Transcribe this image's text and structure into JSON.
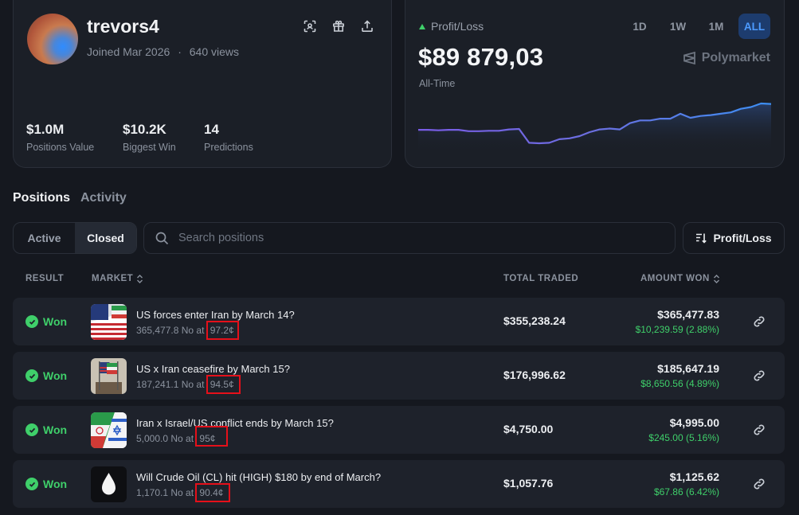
{
  "profile": {
    "username": "trevors4",
    "joined": "Joined Mar 2026",
    "separator": "·",
    "views": "640 views",
    "stats": [
      {
        "value": "$1.0M",
        "label": "Positions Value"
      },
      {
        "value": "$10.2K",
        "label": "Biggest Win"
      },
      {
        "value": "14",
        "label": "Predictions"
      }
    ],
    "icons": [
      "scan-icon",
      "gift-icon",
      "share-icon"
    ]
  },
  "pnl": {
    "label": "Profit/Loss",
    "value": "$89 879,03",
    "period": "All-Time",
    "ranges": [
      "1D",
      "1W",
      "1M",
      "ALL"
    ],
    "active_range": "ALL",
    "brand": "Polymarket",
    "accent_color": "#4d9bff",
    "chart_data": {
      "type": "line",
      "values": [
        0.59,
        0.59,
        0.58,
        0.59,
        0.59,
        0.56,
        0.56,
        0.57,
        0.57,
        0.6,
        0.61,
        0.3,
        0.29,
        0.3,
        0.38,
        0.4,
        0.45,
        0.54,
        0.6,
        0.62,
        0.6,
        0.74,
        0.8,
        0.8,
        0.84,
        0.84,
        0.95,
        0.86,
        0.9,
        0.92,
        0.95,
        0.98,
        1.06,
        1.1,
        1.18,
        1.17
      ]
    }
  },
  "tabs": [
    {
      "label": "Positions",
      "active": true
    },
    {
      "label": "Activity",
      "active": false
    }
  ],
  "filter": {
    "active_label": "Active",
    "closed_label": "Closed",
    "selected": "Closed"
  },
  "search": {
    "placeholder": "Search positions"
  },
  "sort_button": {
    "label": "Profit/Loss"
  },
  "table": {
    "headers": {
      "result": "RESULT",
      "market": "MARKET",
      "traded": "TOTAL TRADED",
      "amount": "AMOUNT WON"
    },
    "rows": [
      {
        "result": "Won",
        "title": "US forces enter Iran by March 14?",
        "shares": "365,477.8 No at",
        "price": "97.2¢",
        "traded": "$355,238.24",
        "amount": "$365,477.83",
        "gain": "$10,239.59 (2.88%)",
        "thumb": "us-iran-flags"
      },
      {
        "result": "Won",
        "title": "US x Iran ceasefire by March 15?",
        "shares": "187,241.1 No at",
        "price": "94.5¢",
        "traded": "$176,996.62",
        "amount": "$185,647.19",
        "gain": "$8,650.56 (4.89%)",
        "thumb": "us-iran-flagpoles"
      },
      {
        "result": "Won",
        "title": "Iran x Israel/US conflict ends by March 15?",
        "shares": "5,000.0 No at",
        "price": "95¢",
        "traded": "$4,750.00",
        "amount": "$4,995.00",
        "gain": "$245.00 (5.16%)",
        "thumb": "iran-israel-flags"
      },
      {
        "result": "Won",
        "title": "Will Crude Oil (CL) hit (HIGH) $180 by end of March?",
        "shares": "1,170.1 No at",
        "price": "90.4¢",
        "traded": "$1,057.76",
        "amount": "$1,125.62",
        "gain": "$67.86 (6.42%)",
        "thumb": "oil-drop"
      }
    ]
  }
}
